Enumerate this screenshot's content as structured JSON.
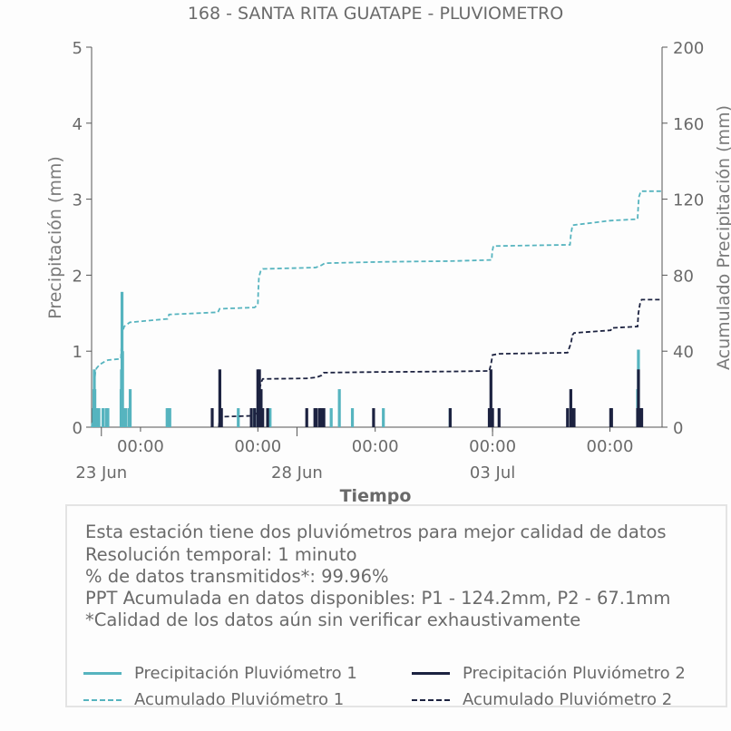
{
  "chart_data": {
    "type": "bar",
    "title": "168 - SANTA RITA GUATAPE - PLUVIOMETRO",
    "xlabel": "Tiempo",
    "ylabel": "Precipitación (mm)",
    "y2label": "Acumulado Precipitación (mm)",
    "xlim": [
      "2023-06-22T18:00",
      "2023-07-07T08:00"
    ],
    "ylim": [
      0,
      5
    ],
    "y2lim": [
      0,
      200
    ],
    "yticks": [
      "0",
      "1",
      "2",
      "3",
      "4",
      "5"
    ],
    "y2ticks": [
      "0",
      "40",
      "80",
      "120",
      "160",
      "200"
    ],
    "xticks_minor": [
      {
        "t": "2023-06-24T00:00",
        "label": "00:00"
      },
      {
        "t": "2023-06-27T00:00",
        "label": "00:00"
      },
      {
        "t": "2023-06-30T00:00",
        "label": "00:00"
      },
      {
        "t": "2023-07-03T00:00",
        "label": "00:00"
      },
      {
        "t": "2023-07-06T00:00",
        "label": "00:00"
      }
    ],
    "xticks_major": [
      {
        "t": "2023-06-23T00:00",
        "label": "23 Jun"
      },
      {
        "t": "2023-06-28T00:00",
        "label": "28 Jun"
      },
      {
        "t": "2023-07-03T00:00",
        "label": "03 Jul"
      }
    ],
    "colors": {
      "p1": "#56b4bf",
      "p2": "#1c2240"
    },
    "grid": false,
    "series": [
      {
        "name": "Precipitación Pluviómetro 1",
        "kind": "bar",
        "axis": "left",
        "color": "#56b4bf",
        "points": [
          [
            "2023-06-22T19:10",
            0.25
          ],
          [
            "2023-06-22T19:25",
            0.5
          ],
          [
            "2023-06-22T19:40",
            0.76
          ],
          [
            "2023-06-22T20:00",
            0.5
          ],
          [
            "2023-06-22T20:15",
            0.25
          ],
          [
            "2023-06-22T21:00",
            0.25
          ],
          [
            "2023-06-22T22:30",
            0.25
          ],
          [
            "2023-06-23T01:00",
            0.25
          ],
          [
            "2023-06-23T03:00",
            0.25
          ],
          [
            "2023-06-23T04:00",
            0.25
          ],
          [
            "2023-06-23T12:05",
            0.5
          ],
          [
            "2023-06-23T12:20",
            0.76
          ],
          [
            "2023-06-23T12:40",
            1.78
          ],
          [
            "2023-06-23T13:00",
            1.0
          ],
          [
            "2023-06-23T13:30",
            0.25
          ],
          [
            "2023-06-23T15:00",
            0.25
          ],
          [
            "2023-06-23T17:00",
            0.25
          ],
          [
            "2023-06-23T17:40",
            0.5
          ],
          [
            "2023-06-24T16:20",
            0.25
          ],
          [
            "2023-06-24T17:00",
            0.25
          ],
          [
            "2023-06-24T18:00",
            0.25
          ],
          [
            "2023-06-26T12:00",
            0.25
          ],
          [
            "2023-06-26T22:00",
            0.25
          ],
          [
            "2023-06-27T07:30",
            0.25
          ],
          [
            "2023-06-28T21:00",
            0.25
          ],
          [
            "2023-06-29T02:00",
            0.5
          ],
          [
            "2023-06-29T10:00",
            0.25
          ],
          [
            "2023-06-30T05:00",
            0.25
          ],
          [
            "2023-07-01T22:00",
            0.25
          ],
          [
            "2023-07-06T17:00",
            0.5
          ],
          [
            "2023-07-06T17:30",
            1.02
          ],
          [
            "2023-07-06T19:00",
            0.25
          ]
        ]
      },
      {
        "name": "Precipitación Pluviómetro 2",
        "kind": "bar",
        "axis": "left",
        "color": "#1c2240",
        "points": [
          [
            "2023-06-25T20:00",
            0.25
          ],
          [
            "2023-06-26T00:40",
            0.76
          ],
          [
            "2023-06-26T01:40",
            0.25
          ],
          [
            "2023-06-26T20:00",
            0.25
          ],
          [
            "2023-06-26T22:00",
            0.25
          ],
          [
            "2023-06-27T00:00",
            0.76
          ],
          [
            "2023-06-27T01:00",
            0.76
          ],
          [
            "2023-06-27T02:00",
            0.5
          ],
          [
            "2023-06-27T03:00",
            0.25
          ],
          [
            "2023-06-27T06:00",
            0.25
          ],
          [
            "2023-06-28T06:00",
            0.25
          ],
          [
            "2023-06-28T11:00",
            0.25
          ],
          [
            "2023-06-28T12:00",
            0.25
          ],
          [
            "2023-06-28T14:00",
            0.25
          ],
          [
            "2023-06-28T15:00",
            0.25
          ],
          [
            "2023-06-28T16:30",
            0.25
          ],
          [
            "2023-06-29T23:00",
            0.25
          ],
          [
            "2023-07-01T22:00",
            0.25
          ],
          [
            "2023-07-02T22:00",
            0.25
          ],
          [
            "2023-07-02T23:00",
            0.76
          ],
          [
            "2023-07-03T00:00",
            0.25
          ],
          [
            "2023-07-03T04:00",
            0.25
          ],
          [
            "2023-07-04T22:00",
            0.25
          ],
          [
            "2023-07-05T00:00",
            0.5
          ],
          [
            "2023-07-05T01:00",
            0.25
          ],
          [
            "2023-07-05T02:00",
            0.25
          ],
          [
            "2023-07-06T00:30",
            0.25
          ],
          [
            "2023-07-06T01:00",
            0.25
          ],
          [
            "2023-07-06T17:00",
            0.25
          ],
          [
            "2023-07-06T17:30",
            0.76
          ],
          [
            "2023-07-06T18:30",
            0.25
          ],
          [
            "2023-07-06T19:30",
            0.25
          ]
        ]
      },
      {
        "name": "Acumulado Pluviómetro 1",
        "kind": "step",
        "axis": "right",
        "color": "#56b4bf",
        "points": [
          [
            "2023-06-22T18:00",
            0
          ],
          [
            "2023-06-22T19:00",
            5
          ],
          [
            "2023-06-22T19:30",
            14
          ],
          [
            "2023-06-22T19:50",
            25
          ],
          [
            "2023-06-22T20:20",
            29
          ],
          [
            "2023-06-22T21:00",
            31
          ],
          [
            "2023-06-22T23:00",
            33
          ],
          [
            "2023-06-23T02:00",
            34.5
          ],
          [
            "2023-06-23T04:00",
            35.3
          ],
          [
            "2023-06-23T12:00",
            36
          ],
          [
            "2023-06-23T12:30",
            45
          ],
          [
            "2023-06-23T13:00",
            50
          ],
          [
            "2023-06-23T14:00",
            53
          ],
          [
            "2023-06-23T17:30",
            55.2
          ],
          [
            "2023-06-24T16:30",
            57
          ],
          [
            "2023-06-24T17:30",
            59.3
          ],
          [
            "2023-06-25T23:30",
            60.5
          ],
          [
            "2023-06-26T00:30",
            62.3
          ],
          [
            "2023-06-26T22:00",
            63
          ],
          [
            "2023-06-27T00:00",
            64.5
          ],
          [
            "2023-06-27T00:15",
            72
          ],
          [
            "2023-06-27T00:40",
            79
          ],
          [
            "2023-06-27T01:40",
            82
          ],
          [
            "2023-06-27T03:00",
            83.3
          ],
          [
            "2023-06-28T11:30",
            84
          ],
          [
            "2023-06-28T15:00",
            85.2
          ],
          [
            "2023-06-28T17:00",
            86.3
          ],
          [
            "2023-06-30T05:00",
            87
          ],
          [
            "2023-07-01T22:00",
            87.4
          ],
          [
            "2023-07-02T23:30",
            88
          ],
          [
            "2023-07-02T23:45",
            92
          ],
          [
            "2023-07-03T00:30",
            95.3
          ],
          [
            "2023-07-04T23:30",
            96
          ],
          [
            "2023-07-05T00:00",
            101
          ],
          [
            "2023-07-05T01:00",
            106.3
          ],
          [
            "2023-07-06T00:00",
            108.7
          ],
          [
            "2023-07-06T17:00",
            109.5
          ],
          [
            "2023-07-06T17:20",
            115
          ],
          [
            "2023-07-06T17:45",
            121
          ],
          [
            "2023-07-06T19:00",
            124.2
          ],
          [
            "2023-07-07T08:00",
            124.2
          ]
        ]
      },
      {
        "name": "Acumulado Pluviómetro 2",
        "kind": "step",
        "axis": "right",
        "color": "#1c2240",
        "points": [
          [
            "2023-06-26T00:00",
            0
          ],
          [
            "2023-06-26T00:40",
            5
          ],
          [
            "2023-06-26T01:40",
            5.5
          ],
          [
            "2023-06-26T22:00",
            6
          ],
          [
            "2023-06-27T00:00",
            9
          ],
          [
            "2023-06-27T00:15",
            14
          ],
          [
            "2023-06-27T01:00",
            20
          ],
          [
            "2023-06-27T02:00",
            23.5
          ],
          [
            "2023-06-27T03:00",
            25.4
          ],
          [
            "2023-06-28T06:00",
            25.7
          ],
          [
            "2023-06-28T12:00",
            26.2
          ],
          [
            "2023-06-28T15:00",
            27.2
          ],
          [
            "2023-06-28T16:30",
            28.7
          ],
          [
            "2023-06-29T23:00",
            29
          ],
          [
            "2023-07-01T22:00",
            29.3
          ],
          [
            "2023-07-02T22:00",
            29.6
          ],
          [
            "2023-07-02T23:00",
            33
          ],
          [
            "2023-07-03T00:00",
            38
          ],
          [
            "2023-07-03T04:00",
            38.6
          ],
          [
            "2023-07-04T22:00",
            39.2
          ],
          [
            "2023-07-05T00:00",
            44
          ],
          [
            "2023-07-05T01:00",
            48.5
          ],
          [
            "2023-07-05T02:00",
            49.6
          ],
          [
            "2023-07-06T00:30",
            51
          ],
          [
            "2023-07-06T01:00",
            52.2
          ],
          [
            "2023-07-06T17:00",
            53
          ],
          [
            "2023-07-06T17:30",
            60
          ],
          [
            "2023-07-06T18:30",
            65
          ],
          [
            "2023-07-06T19:30",
            67.1
          ],
          [
            "2023-07-07T08:00",
            67.1
          ]
        ]
      }
    ]
  },
  "info": {
    "lines": [
      "Esta estación tiene dos pluviómetros para mejor calidad de datos",
      "Resolución temporal: 1 minuto",
      "% de datos transmitidos*: 99.96%",
      "PPT Acumulada en datos disponibles: P1 - 124.2mm, P2 - 67.1mm",
      "*Calidad de los datos aún sin verificar exhaustivamente"
    ]
  },
  "legend": {
    "items": [
      {
        "label": "Precipitación Pluviómetro 1",
        "color": "#56b4bf",
        "style": "solid"
      },
      {
        "label": "Precipitación Pluviómetro 2",
        "color": "#1c2240",
        "style": "solid"
      },
      {
        "label": "Acumulado Pluviómetro 1",
        "color": "#56b4bf",
        "style": "dashed"
      },
      {
        "label": "Acumulado Pluviómetro 2",
        "color": "#1c2240",
        "style": "dashed"
      }
    ]
  }
}
